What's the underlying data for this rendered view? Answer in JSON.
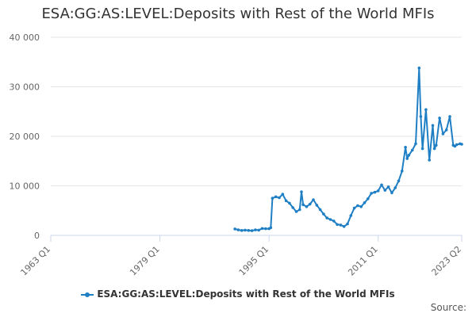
{
  "chart_data": {
    "type": "line",
    "title": "ESA:GG:AS:LEVEL:Deposits with Rest of the World MFIs",
    "xlabel": "",
    "ylabel": "",
    "x_ticks": [
      "1963 Q1",
      "1979 Q1",
      "1995 Q1",
      "2011 Q1",
      "2023 Q2"
    ],
    "y_ticks": [
      "0",
      "10 000",
      "20 000",
      "30 000",
      "40 000"
    ],
    "ylim": [
      0,
      40000
    ],
    "grid": true,
    "legend_position": "bottom",
    "color": "#1f7fc4",
    "series": [
      {
        "name": "ESA:GG:AS:LEVEL:Deposits with Rest of the World MFIs",
        "x": [
          "1990 Q1",
          "1990 Q3",
          "1991 Q1",
          "1991 Q3",
          "1992 Q1",
          "1992 Q3",
          "1993 Q1",
          "1993 Q3",
          "1994 Q1",
          "1994 Q3",
          "1995 Q1",
          "1995 Q2",
          "1995 Q3",
          "1996 Q1",
          "1996 Q3",
          "1997 Q1",
          "1997 Q3",
          "1998 Q1",
          "1998 Q3",
          "1999 Q1",
          "1999 Q3",
          "1999 Q4",
          "2000 Q1",
          "2000 Q3",
          "2001 Q1",
          "2001 Q3",
          "2002 Q1",
          "2002 Q3",
          "2003 Q1",
          "2003 Q3",
          "2004 Q1",
          "2004 Q3",
          "2005 Q1",
          "2005 Q3",
          "2006 Q1",
          "2006 Q3",
          "2007 Q1",
          "2007 Q3",
          "2008 Q1",
          "2008 Q3",
          "2009 Q1",
          "2009 Q3",
          "2010 Q1",
          "2010 Q3",
          "2011 Q1",
          "2011 Q3",
          "2012 Q1",
          "2012 Q3",
          "2013 Q1",
          "2013 Q3",
          "2014 Q1",
          "2014 Q3",
          "2015 Q1",
          "2015 Q2",
          "2015 Q3",
          "2016 Q1",
          "2016 Q3",
          "2017 Q1",
          "2017 Q2",
          "2017 Q3",
          "2018 Q1",
          "2018 Q3",
          "2019 Q1",
          "2019 Q2",
          "2019 Q3",
          "2020 Q1",
          "2020 Q3",
          "2021 Q1",
          "2021 Q3",
          "2022 Q1",
          "2022 Q2",
          "2022 Q3",
          "2023 Q1",
          "2023 Q2"
        ],
        "values": [
          1300,
          1100,
          1000,
          1050,
          1000,
          950,
          1100,
          1050,
          1400,
          1350,
          1350,
          1550,
          7500,
          7800,
          7600,
          8300,
          7000,
          6500,
          5600,
          4800,
          5200,
          8800,
          6200,
          5800,
          6300,
          7200,
          6100,
          5200,
          4300,
          3500,
          3200,
          2900,
          2200,
          2100,
          1800,
          2300,
          4000,
          5500,
          6000,
          5800,
          6600,
          7400,
          8500,
          8700,
          9000,
          10200,
          9100,
          9800,
          8600,
          9600,
          11000,
          13000,
          17800,
          15500,
          16200,
          17200,
          18500,
          33800,
          24000,
          17500,
          25400,
          15200,
          22200,
          17500,
          18200,
          23700,
          20500,
          21300,
          24000,
          18200,
          18000,
          18300,
          18500,
          18400
        ]
      }
    ]
  },
  "source_label": "Source:"
}
